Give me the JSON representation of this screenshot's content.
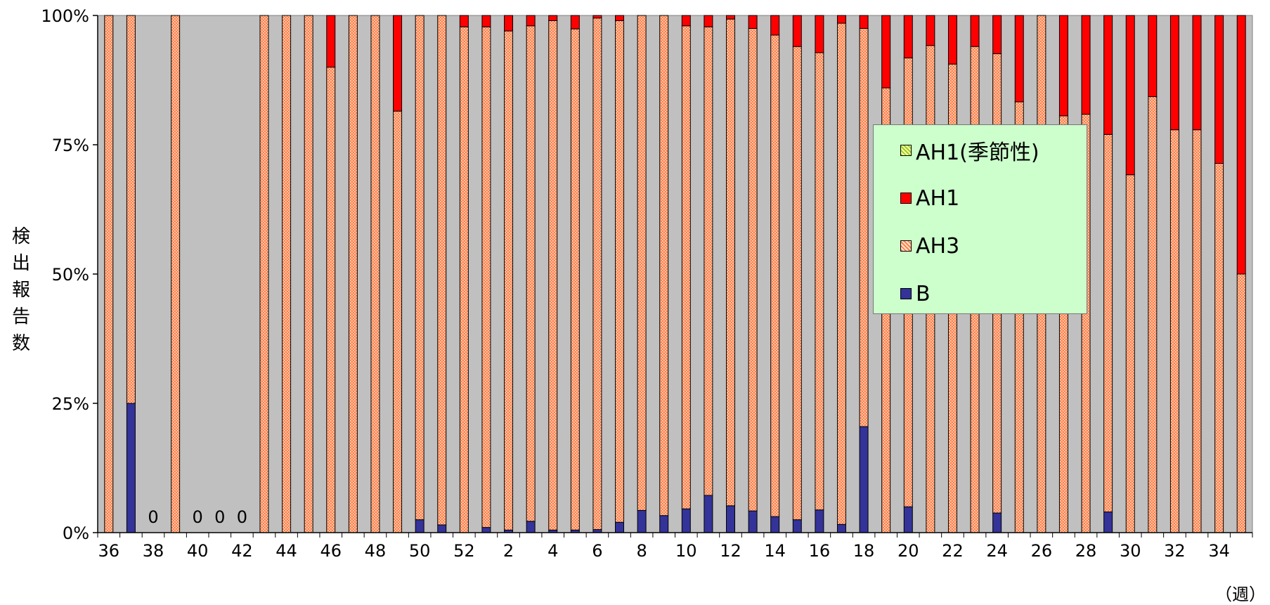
{
  "chart_data": {
    "type": "bar",
    "stacked": true,
    "percent": true,
    "xlabel": "（週）",
    "ylabel": "検出報告数",
    "ylim": [
      0,
      100
    ],
    "yticks": [
      "0%",
      "25%",
      "50%",
      "75%",
      "100%"
    ],
    "categories": [
      "36",
      "37",
      "38",
      "39",
      "40",
      "41",
      "42",
      "43",
      "44",
      "45",
      "46",
      "47",
      "48",
      "49",
      "50",
      "51",
      "52",
      "1",
      "2",
      "3",
      "4",
      "5",
      "6",
      "7",
      "8",
      "9",
      "10",
      "11",
      "12",
      "13",
      "14",
      "15",
      "16",
      "17",
      "18",
      "19",
      "20",
      "21",
      "22",
      "23",
      "24",
      "25",
      "26",
      "27",
      "28",
      "29",
      "30",
      "31",
      "32",
      "33",
      "34",
      "35"
    ],
    "tick_labels": [
      "36",
      "38",
      "40",
      "42",
      "44",
      "46",
      "48",
      "50",
      "52",
      "2",
      "4",
      "6",
      "8",
      "10",
      "12",
      "14",
      "16",
      "18",
      "20",
      "22",
      "24",
      "26",
      "28",
      "30",
      "32",
      "34"
    ],
    "zero_labels": [
      {
        "category": "38",
        "text": "0"
      },
      {
        "category": "40",
        "text": "0"
      },
      {
        "category": "41",
        "text": "0"
      },
      {
        "category": "42",
        "text": "0"
      }
    ],
    "series": [
      {
        "name": "B",
        "color": "#333399",
        "values": [
          0,
          25,
          0,
          0,
          0,
          0,
          0,
          0,
          0,
          0,
          0,
          0,
          0,
          0,
          2.5,
          1.5,
          0,
          1,
          0.5,
          2.2,
          0.5,
          0.5,
          0.6,
          2,
          4.3,
          3.3,
          4.6,
          7.2,
          5.2,
          4.2,
          3.1,
          2.5,
          4.4,
          1.6,
          20.5,
          0,
          5,
          0,
          0,
          0,
          3.8,
          0,
          0,
          0,
          0,
          4,
          0,
          0,
          0,
          0,
          0,
          0
        ]
      },
      {
        "name": "AH3",
        "color": "#ff9966",
        "values": [
          100,
          75,
          0,
          100,
          0,
          0,
          0,
          100,
          100,
          100,
          90,
          100,
          100,
          81.5,
          97.5,
          98.5,
          97.8,
          96.8,
          96.5,
          95.8,
          98.5,
          96.9,
          98.9,
          97,
          95.7,
          96.7,
          93.4,
          90.6,
          94.1,
          93.3,
          93.1,
          91.5,
          88.4,
          96.9,
          77,
          86,
          86.8,
          94.2,
          90.6,
          94,
          88.8,
          83.3,
          100,
          80.6,
          80.9,
          73,
          69.2,
          84.3,
          77.9,
          77.9,
          71.4,
          50
        ]
      },
      {
        "name": "AH1",
        "color": "#ff0000",
        "values": [
          0,
          0,
          0,
          0,
          0,
          0,
          0,
          0,
          0,
          0,
          10,
          0,
          0,
          18.5,
          0,
          0,
          2.2,
          2.2,
          3,
          2,
          1,
          2.6,
          0.5,
          1,
          0,
          0,
          2,
          2.2,
          0.7,
          2.5,
          3.8,
          6,
          7.2,
          1.5,
          2.5,
          14,
          8.2,
          5.8,
          9.4,
          6,
          7.4,
          16.7,
          0,
          19.4,
          19.1,
          23,
          30.8,
          15.7,
          22.1,
          22.1,
          28.6,
          50
        ]
      },
      {
        "name": "AH1(季節性)",
        "color": "#ccff66",
        "values": [
          0,
          0,
          0,
          0,
          0,
          0,
          0,
          0,
          0,
          0,
          0,
          0,
          0,
          0,
          0,
          0,
          0,
          0,
          0,
          0,
          0,
          0,
          0,
          0,
          0,
          0,
          0,
          0,
          0,
          0,
          0,
          0,
          0,
          0,
          0,
          0,
          0,
          0,
          0,
          0,
          0,
          0,
          0,
          0,
          0,
          0,
          0,
          0,
          0,
          0,
          0,
          0
        ]
      }
    ],
    "legend": {
      "placement": "right",
      "order": [
        "AH1(季節性)",
        "AH1",
        "AH3",
        "B"
      ]
    },
    "colors": {
      "plot_bg": "#c0c0c0",
      "legend_bg": "#ccffcc"
    }
  }
}
